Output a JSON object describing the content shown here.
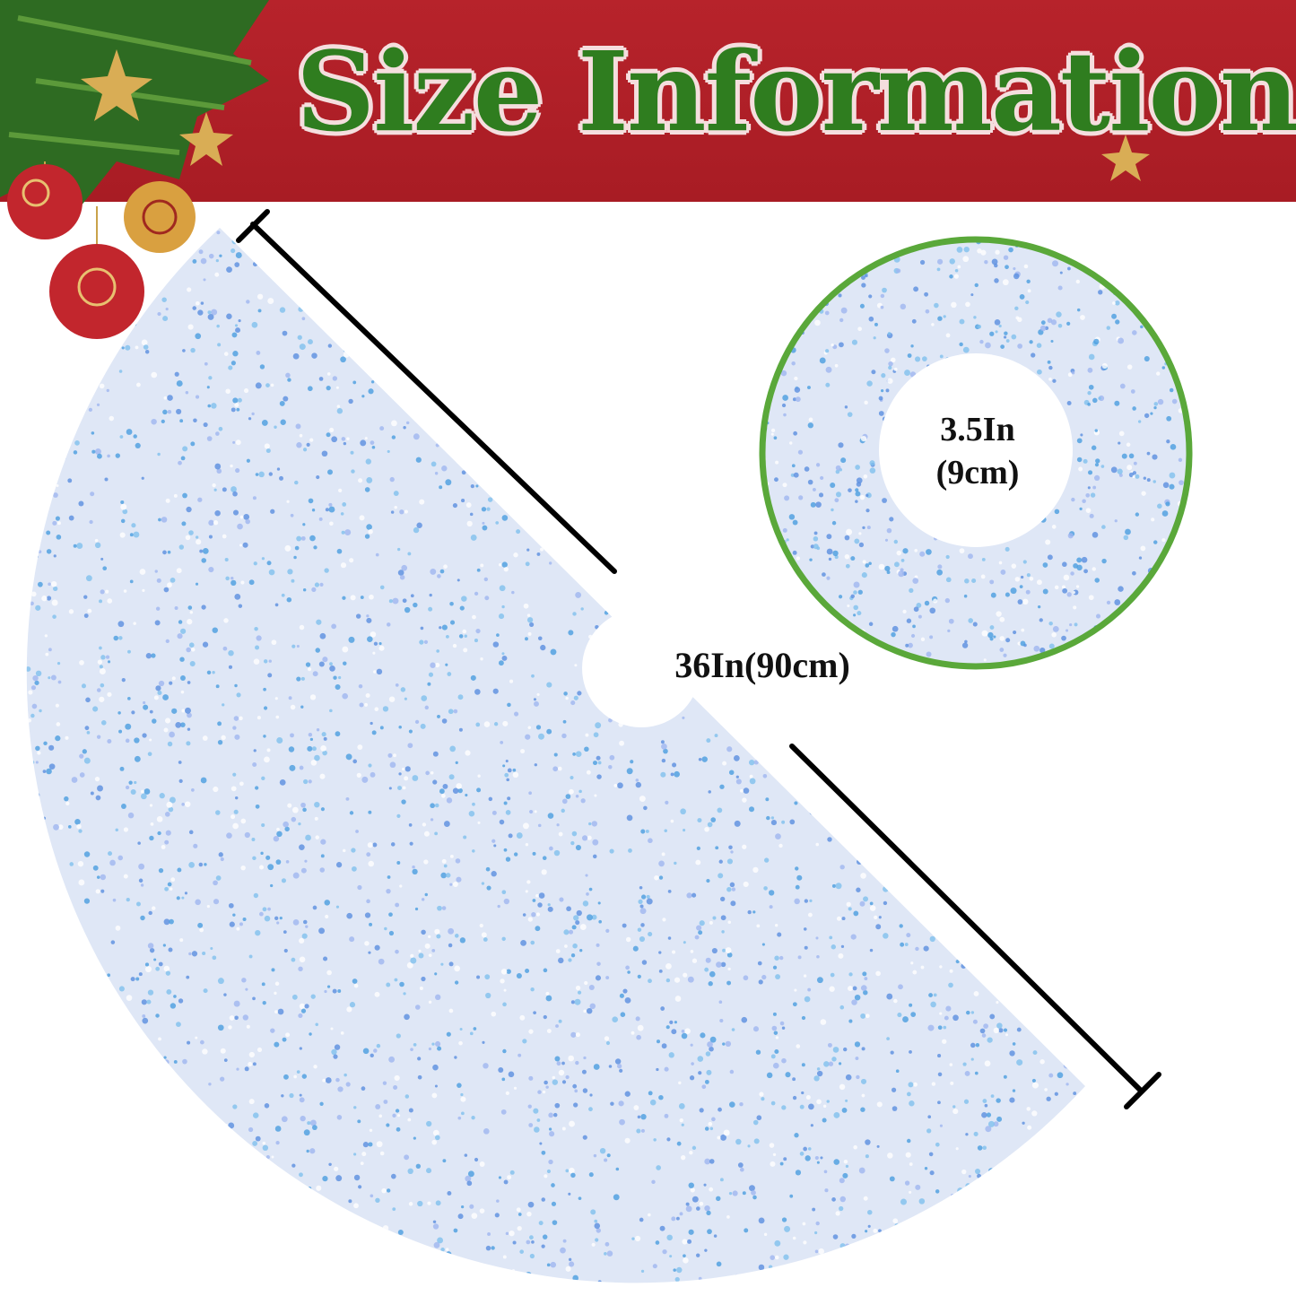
{
  "banner": {
    "title": "Size Information",
    "background_color": "#b5212a",
    "title_color": "#2f7d1f"
  },
  "main_skirt": {
    "dimension_label": "36In(90cm)",
    "fabric_color": "#dfe7f6",
    "sequin_color": "#4a9ee0"
  },
  "inner_circle": {
    "dimension_line1": "3.5In",
    "dimension_line2": "(9cm)",
    "border_color": "#5aa83a"
  },
  "decorations": {
    "icons": [
      "pine-branch-icon",
      "ornament-ball-icon",
      "star-icon"
    ]
  }
}
